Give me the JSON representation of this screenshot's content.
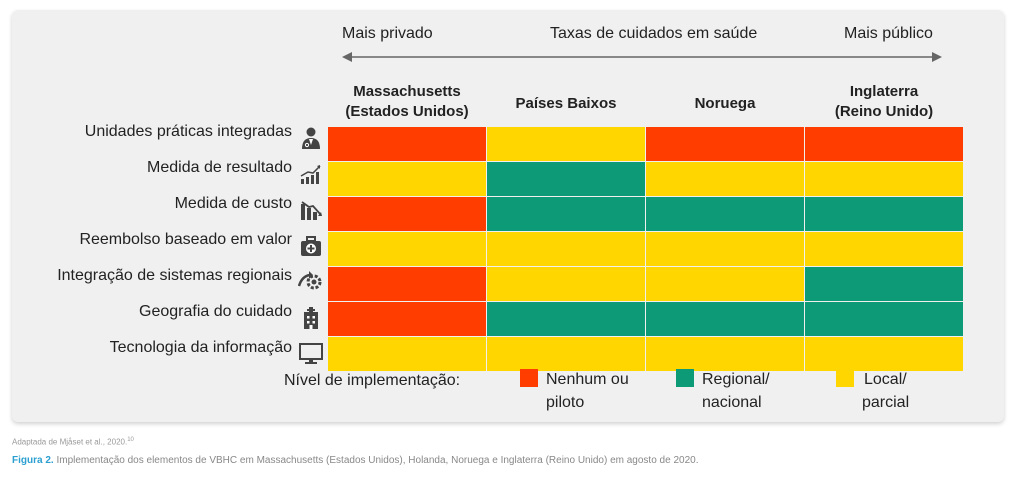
{
  "scale": {
    "left_label": "Mais privado",
    "center_label": "Taxas de cuidados em saúde",
    "right_label": "Mais público"
  },
  "columns": [
    {
      "line1": "Massachusetts",
      "line2": "(Estados Unidos)"
    },
    {
      "line1": "Países Baixos",
      "line2": ""
    },
    {
      "line1": "Noruega",
      "line2": ""
    },
    {
      "line1": "Inglaterra",
      "line2": "(Reino Unido)"
    }
  ],
  "rows": [
    {
      "label": "Unidades práticas integradas",
      "icon": "doctor-icon",
      "levels": [
        "nenhum",
        "local",
        "nenhum",
        "nenhum"
      ]
    },
    {
      "label": "Medida de resultado",
      "icon": "bar-chart-up-icon",
      "levels": [
        "local",
        "regional",
        "local",
        "local"
      ]
    },
    {
      "label": "Medida de custo",
      "icon": "bar-chart-down-icon",
      "levels": [
        "nenhum",
        "regional",
        "regional",
        "regional"
      ]
    },
    {
      "label": "Reembolso baseado em valor",
      "icon": "medical-bag-icon",
      "levels": [
        "local",
        "local",
        "local",
        "local"
      ]
    },
    {
      "label": "Integração de sistemas regionais",
      "icon": "gear-arrow-icon",
      "levels": [
        "nenhum",
        "local",
        "local",
        "regional"
      ]
    },
    {
      "label": "Geografia do cuidado",
      "icon": "hospital-icon",
      "levels": [
        "nenhum",
        "regional",
        "regional",
        "regional"
      ]
    },
    {
      "label": "Tecnologia da informação",
      "icon": "monitor-icon",
      "levels": [
        "local",
        "local",
        "local",
        "local"
      ]
    }
  ],
  "colors": {
    "nenhum": "#ff3d00",
    "regional": "#0c9a77",
    "local": "#ffd600"
  },
  "legend": {
    "title": "Nível de implementação:",
    "items": [
      {
        "key": "nenhum",
        "line1": "Nenhum ou",
        "line2": "piloto"
      },
      {
        "key": "regional",
        "line1": "Regional/",
        "line2": "nacional"
      },
      {
        "key": "local",
        "line1": "Local/",
        "line2": "parcial"
      }
    ]
  },
  "credit": "Adaptada de Mjåset et al., 2020.",
  "credit_ref": "10",
  "caption": {
    "label": "Figura 2.",
    "text": " Implementação dos elementos de VBHC em Massachusetts (Estados Unidos), Holanda, Noruega e Inglaterra (Reino Unido) em agosto de 2020."
  }
}
